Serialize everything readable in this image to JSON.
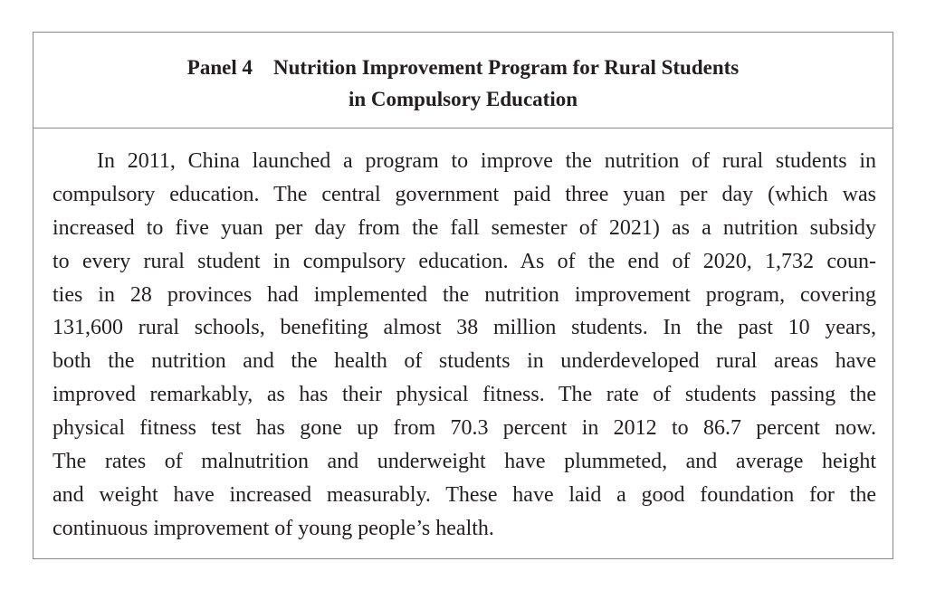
{
  "panel": {
    "title_line1": "Panel 4    Nutrition Improvement Program for Rural Students",
    "title_line2": "in Compulsory Education",
    "lines": [
      "In 2011, China launched a program to improve the nutrition of rural students in",
      "compulsory education. The central government paid three yuan per day (which was",
      "increased to five yuan per day from the fall semester of 2021) as a nutrition subsidy",
      "to every rural student in compulsory education. As of the end of 2020, 1,732 coun-",
      "ties in 28 provinces had implemented the nutrition improvement program, covering",
      "131,600 rural schools, benefiting almost 38 million students. In the past 10 years,",
      "both the nutrition and the health of students in underdeveloped rural areas have",
      "improved remarkably, as has their physical fitness. The rate of students passing the",
      "physical fitness test has gone up from 70.3 percent in 2012 to 86.7 percent now.",
      "The rates of malnutrition and underweight have plummeted, and average height",
      "and weight have increased measurably. These have laid a good foundation for the",
      "continuous improvement of young people’s health."
    ]
  }
}
